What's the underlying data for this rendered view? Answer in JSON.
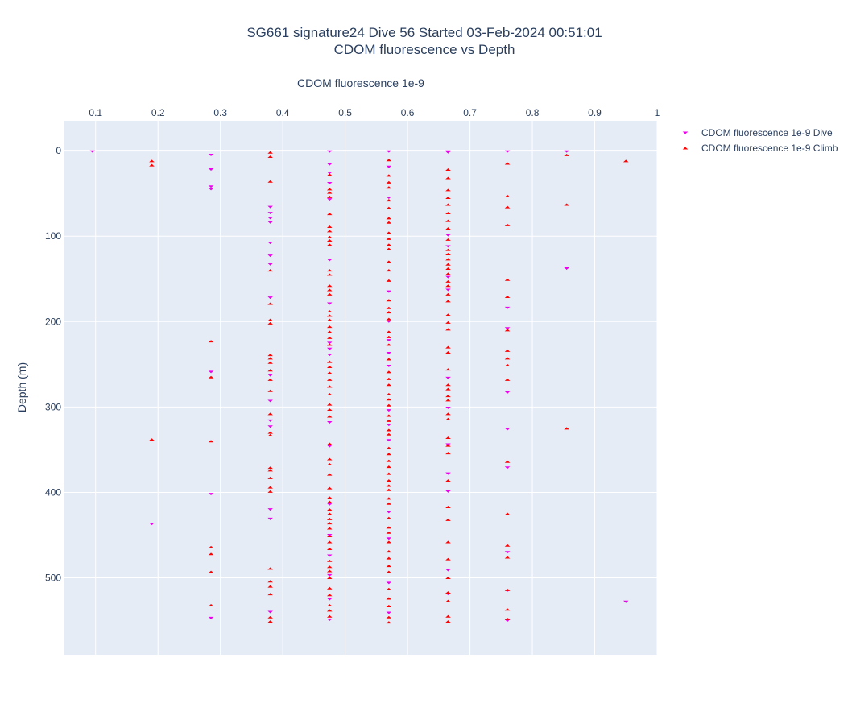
{
  "chart_data": {
    "type": "scatter",
    "title": "SG661 signature24 Dive 56 Started 03-Feb-2024 00:51:01",
    "subtitle": "CDOM fluorescence vs Depth",
    "xlabel": "CDOM fluorescence 1e-9",
    "ylabel": "Depth (m)",
    "xlim": [
      0.05,
      1.0
    ],
    "ylim": [
      590,
      -35
    ],
    "x_axis_position": "top",
    "y_reversed": true,
    "x_ticks": [
      "0.1",
      "0.2",
      "0.3",
      "0.4",
      "0.5",
      "0.6",
      "0.7",
      "0.8",
      "0.9",
      "1"
    ],
    "y_ticks": [
      "0",
      "100",
      "200",
      "300",
      "400",
      "500"
    ],
    "grid": true,
    "legend_position": "right",
    "plot_bgcolor": "#e5ecf6",
    "series": [
      {
        "name": "CDOM fluorescence 1e-9 Dive",
        "marker": "triangle-down",
        "color": "#ee00ee",
        "points": [
          [
            0.095,
            1
          ],
          [
            0.285,
            5
          ],
          [
            0.285,
            22
          ],
          [
            0.285,
            42
          ],
          [
            0.285,
            45
          ],
          [
            0.285,
            259
          ],
          [
            0.285,
            402
          ],
          [
            0.285,
            547
          ],
          [
            0.19,
            437
          ],
          [
            0.38,
            66
          ],
          [
            0.38,
            73
          ],
          [
            0.38,
            79
          ],
          [
            0.38,
            84
          ],
          [
            0.38,
            108
          ],
          [
            0.38,
            123
          ],
          [
            0.38,
            133
          ],
          [
            0.38,
            172
          ],
          [
            0.38,
            263
          ],
          [
            0.38,
            293
          ],
          [
            0.38,
            316
          ],
          [
            0.38,
            323
          ],
          [
            0.38,
            420
          ],
          [
            0.38,
            431
          ],
          [
            0.38,
            540
          ],
          [
            0.475,
            1
          ],
          [
            0.475,
            16
          ],
          [
            0.475,
            26
          ],
          [
            0.475,
            38
          ],
          [
            0.475,
            57
          ],
          [
            0.475,
            128
          ],
          [
            0.475,
            179
          ],
          [
            0.475,
            225
          ],
          [
            0.475,
            232
          ],
          [
            0.475,
            239
          ],
          [
            0.475,
            318
          ],
          [
            0.475,
            346
          ],
          [
            0.475,
            414
          ],
          [
            0.475,
            450
          ],
          [
            0.475,
            474
          ],
          [
            0.475,
            497
          ],
          [
            0.475,
            525
          ],
          [
            0.475,
            549
          ],
          [
            0.57,
            1
          ],
          [
            0.57,
            19
          ],
          [
            0.57,
            55
          ],
          [
            0.57,
            165
          ],
          [
            0.57,
            200
          ],
          [
            0.57,
            222
          ],
          [
            0.57,
            237
          ],
          [
            0.57,
            252
          ],
          [
            0.57,
            304
          ],
          [
            0.57,
            321
          ],
          [
            0.57,
            339
          ],
          [
            0.57,
            423
          ],
          [
            0.57,
            454
          ],
          [
            0.57,
            506
          ],
          [
            0.57,
            541
          ],
          [
            0.665,
            1
          ],
          [
            0.665,
            2
          ],
          [
            0.665,
            99
          ],
          [
            0.665,
            112
          ],
          [
            0.665,
            148
          ],
          [
            0.665,
            163
          ],
          [
            0.665,
            266
          ],
          [
            0.665,
            301
          ],
          [
            0.665,
            344
          ],
          [
            0.665,
            378
          ],
          [
            0.665,
            399
          ],
          [
            0.665,
            491
          ],
          [
            0.665,
            519
          ],
          [
            0.76,
            1
          ],
          [
            0.76,
            184
          ],
          [
            0.76,
            208
          ],
          [
            0.76,
            283
          ],
          [
            0.76,
            326
          ],
          [
            0.76,
            371
          ],
          [
            0.76,
            470
          ],
          [
            0.76,
            515
          ],
          [
            0.76,
            550
          ],
          [
            0.855,
            1
          ],
          [
            0.855,
            138
          ],
          [
            0.95,
            528
          ]
        ]
      },
      {
        "name": "CDOM fluorescence 1e-9 Climb",
        "marker": "triangle-up",
        "color": "#ff0000",
        "points": [
          [
            0.19,
            12
          ],
          [
            0.19,
            17
          ],
          [
            0.19,
            338
          ],
          [
            0.285,
            223
          ],
          [
            0.285,
            265
          ],
          [
            0.285,
            340
          ],
          [
            0.285,
            464
          ],
          [
            0.285,
            472
          ],
          [
            0.285,
            493
          ],
          [
            0.285,
            532
          ],
          [
            0.38,
            2
          ],
          [
            0.38,
            7
          ],
          [
            0.38,
            36
          ],
          [
            0.38,
            140
          ],
          [
            0.38,
            179
          ],
          [
            0.38,
            198
          ],
          [
            0.38,
            202
          ],
          [
            0.38,
            239
          ],
          [
            0.38,
            243
          ],
          [
            0.38,
            248
          ],
          [
            0.38,
            257
          ],
          [
            0.38,
            268
          ],
          [
            0.38,
            281
          ],
          [
            0.38,
            308
          ],
          [
            0.38,
            330
          ],
          [
            0.38,
            333
          ],
          [
            0.38,
            371
          ],
          [
            0.38,
            374
          ],
          [
            0.38,
            383
          ],
          [
            0.38,
            394
          ],
          [
            0.38,
            399
          ],
          [
            0.38,
            489
          ],
          [
            0.38,
            504
          ],
          [
            0.38,
            510
          ],
          [
            0.38,
            519
          ],
          [
            0.38,
            546
          ],
          [
            0.38,
            551
          ],
          [
            0.475,
            28
          ],
          [
            0.475,
            45
          ],
          [
            0.475,
            49
          ],
          [
            0.475,
            54
          ],
          [
            0.475,
            74
          ],
          [
            0.475,
            89
          ],
          [
            0.475,
            94
          ],
          [
            0.475,
            101
          ],
          [
            0.475,
            105
          ],
          [
            0.475,
            110
          ],
          [
            0.475,
            140
          ],
          [
            0.475,
            145
          ],
          [
            0.475,
            158
          ],
          [
            0.475,
            163
          ],
          [
            0.475,
            168
          ],
          [
            0.475,
            188
          ],
          [
            0.475,
            193
          ],
          [
            0.475,
            198
          ],
          [
            0.475,
            206
          ],
          [
            0.475,
            212
          ],
          [
            0.475,
            219
          ],
          [
            0.475,
            227
          ],
          [
            0.475,
            247
          ],
          [
            0.475,
            253
          ],
          [
            0.475,
            260
          ],
          [
            0.475,
            268
          ],
          [
            0.475,
            276
          ],
          [
            0.475,
            285
          ],
          [
            0.475,
            297
          ],
          [
            0.475,
            303
          ],
          [
            0.475,
            311
          ],
          [
            0.475,
            343
          ],
          [
            0.475,
            361
          ],
          [
            0.475,
            367
          ],
          [
            0.475,
            379
          ],
          [
            0.475,
            395
          ],
          [
            0.475,
            406
          ],
          [
            0.475,
            411
          ],
          [
            0.475,
            420
          ],
          [
            0.475,
            425
          ],
          [
            0.475,
            431
          ],
          [
            0.475,
            436
          ],
          [
            0.475,
            442
          ],
          [
            0.475,
            451
          ],
          [
            0.475,
            458
          ],
          [
            0.475,
            466
          ],
          [
            0.475,
            480
          ],
          [
            0.475,
            487
          ],
          [
            0.475,
            492
          ],
          [
            0.475,
            500
          ],
          [
            0.475,
            512
          ],
          [
            0.475,
            520
          ],
          [
            0.475,
            532
          ],
          [
            0.475,
            538
          ],
          [
            0.475,
            545
          ],
          [
            0.57,
            11
          ],
          [
            0.57,
            29
          ],
          [
            0.57,
            37
          ],
          [
            0.57,
            43
          ],
          [
            0.57,
            58
          ],
          [
            0.57,
            67
          ],
          [
            0.57,
            79
          ],
          [
            0.57,
            84
          ],
          [
            0.57,
            96
          ],
          [
            0.57,
            103
          ],
          [
            0.57,
            110
          ],
          [
            0.57,
            115
          ],
          [
            0.57,
            130
          ],
          [
            0.57,
            140
          ],
          [
            0.57,
            152
          ],
          [
            0.57,
            175
          ],
          [
            0.57,
            184
          ],
          [
            0.57,
            189
          ],
          [
            0.57,
            197
          ],
          [
            0.57,
            212
          ],
          [
            0.57,
            218
          ],
          [
            0.57,
            227
          ],
          [
            0.57,
            244
          ],
          [
            0.57,
            259
          ],
          [
            0.57,
            267
          ],
          [
            0.57,
            274
          ],
          [
            0.57,
            285
          ],
          [
            0.57,
            291
          ],
          [
            0.57,
            298
          ],
          [
            0.57,
            310
          ],
          [
            0.57,
            316
          ],
          [
            0.57,
            327
          ],
          [
            0.57,
            332
          ],
          [
            0.57,
            348
          ],
          [
            0.57,
            355
          ],
          [
            0.57,
            363
          ],
          [
            0.57,
            370
          ],
          [
            0.57,
            378
          ],
          [
            0.57,
            386
          ],
          [
            0.57,
            392
          ],
          [
            0.57,
            397
          ],
          [
            0.57,
            407
          ],
          [
            0.57,
            413
          ],
          [
            0.57,
            430
          ],
          [
            0.57,
            441
          ],
          [
            0.57,
            447
          ],
          [
            0.57,
            458
          ],
          [
            0.57,
            469
          ],
          [
            0.57,
            477
          ],
          [
            0.57,
            486
          ],
          [
            0.57,
            493
          ],
          [
            0.57,
            513
          ],
          [
            0.57,
            524
          ],
          [
            0.57,
            533
          ],
          [
            0.57,
            546
          ],
          [
            0.57,
            552
          ],
          [
            0.665,
            22
          ],
          [
            0.665,
            32
          ],
          [
            0.665,
            46
          ],
          [
            0.665,
            55
          ],
          [
            0.665,
            63
          ],
          [
            0.665,
            73
          ],
          [
            0.665,
            82
          ],
          [
            0.665,
            91
          ],
          [
            0.665,
            104
          ],
          [
            0.665,
            116
          ],
          [
            0.665,
            121
          ],
          [
            0.665,
            127
          ],
          [
            0.665,
            133
          ],
          [
            0.665,
            138
          ],
          [
            0.665,
            144
          ],
          [
            0.665,
            153
          ],
          [
            0.665,
            158
          ],
          [
            0.665,
            168
          ],
          [
            0.665,
            176
          ],
          [
            0.665,
            192
          ],
          [
            0.665,
            201
          ],
          [
            0.665,
            209
          ],
          [
            0.665,
            230
          ],
          [
            0.665,
            236
          ],
          [
            0.665,
            256
          ],
          [
            0.665,
            274
          ],
          [
            0.665,
            279
          ],
          [
            0.665,
            287
          ],
          [
            0.665,
            292
          ],
          [
            0.665,
            308
          ],
          [
            0.665,
            314
          ],
          [
            0.665,
            336
          ],
          [
            0.665,
            345
          ],
          [
            0.665,
            354
          ],
          [
            0.665,
            386
          ],
          [
            0.665,
            417
          ],
          [
            0.665,
            432
          ],
          [
            0.665,
            458
          ],
          [
            0.665,
            478
          ],
          [
            0.665,
            500
          ],
          [
            0.665,
            517
          ],
          [
            0.665,
            527
          ],
          [
            0.665,
            545
          ],
          [
            0.665,
            551
          ],
          [
            0.76,
            15
          ],
          [
            0.76,
            53
          ],
          [
            0.76,
            66
          ],
          [
            0.76,
            87
          ],
          [
            0.76,
            151
          ],
          [
            0.76,
            171
          ],
          [
            0.76,
            210
          ],
          [
            0.76,
            234
          ],
          [
            0.76,
            243
          ],
          [
            0.76,
            251
          ],
          [
            0.76,
            268
          ],
          [
            0.76,
            364
          ],
          [
            0.76,
            425
          ],
          [
            0.76,
            462
          ],
          [
            0.76,
            476
          ],
          [
            0.76,
            514
          ],
          [
            0.76,
            537
          ],
          [
            0.76,
            548
          ],
          [
            0.855,
            5
          ],
          [
            0.855,
            63
          ],
          [
            0.855,
            325
          ],
          [
            0.95,
            12
          ]
        ]
      }
    ]
  }
}
